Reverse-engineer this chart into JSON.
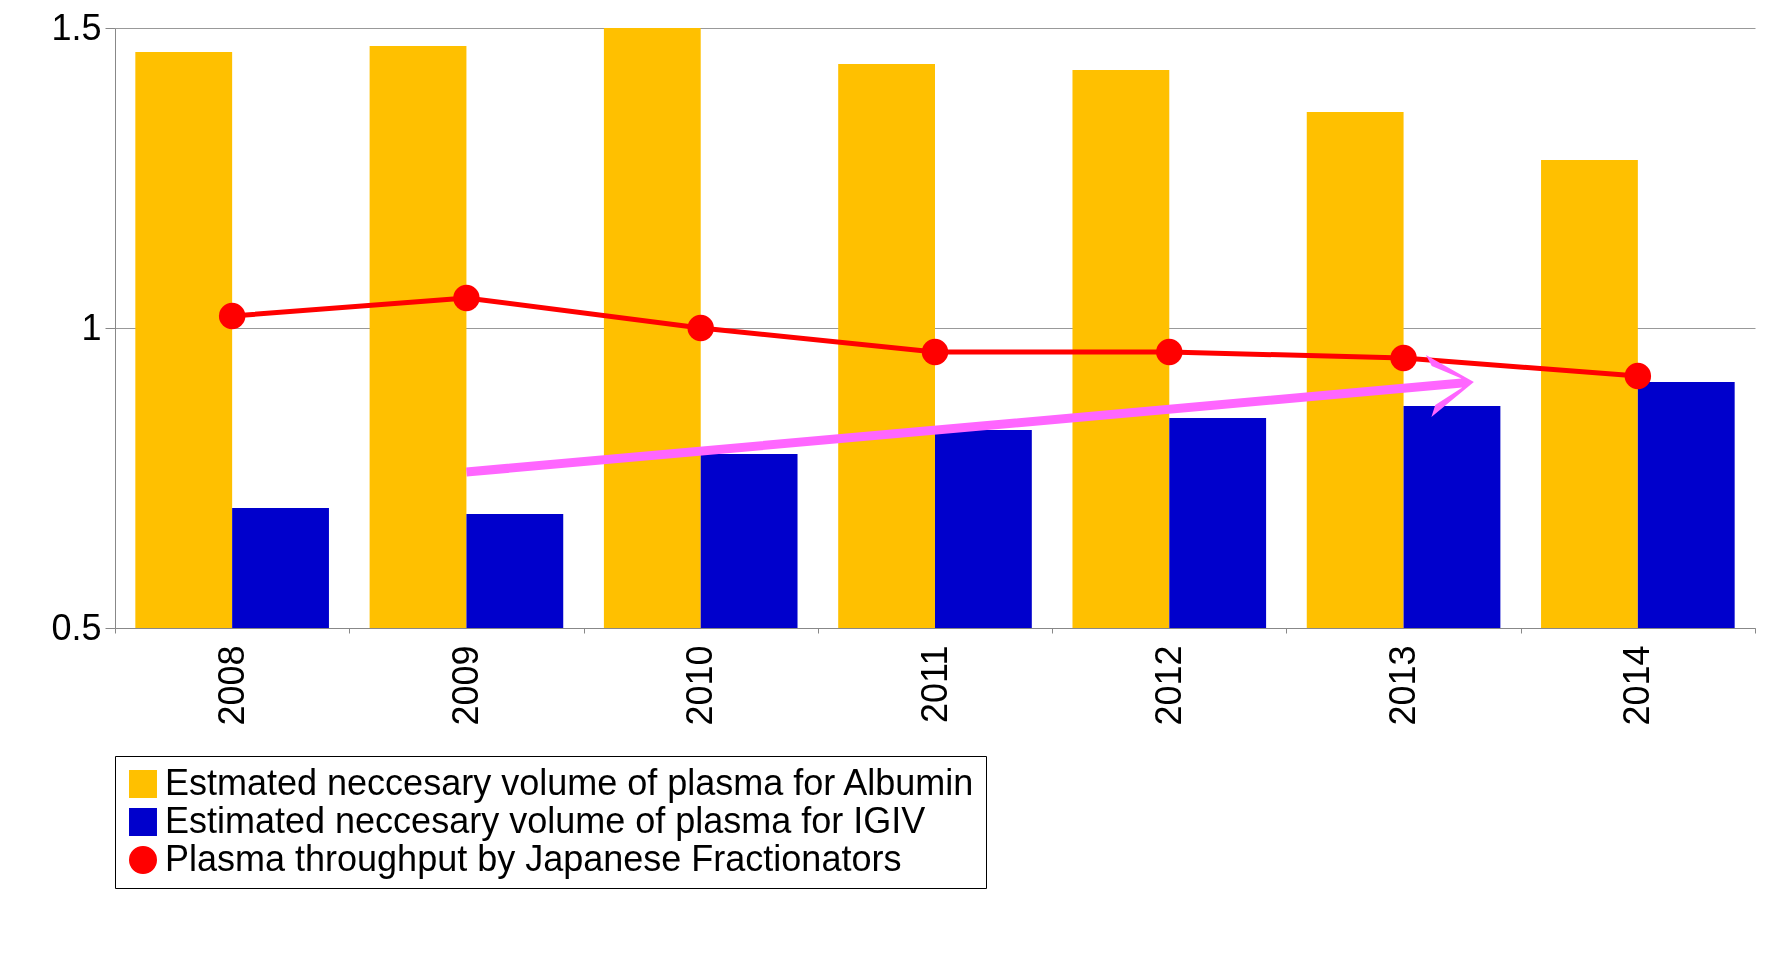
{
  "chart_data": {
    "type": "bar",
    "categories": [
      "2008",
      "2009",
      "2010",
      "2011",
      "2012",
      "2013",
      "2014"
    ],
    "series": [
      {
        "name": "Estmated neccesary volume of plasma for Albumin",
        "color": "#ffc000",
        "values": [
          1.46,
          1.47,
          1.5,
          1.44,
          1.43,
          1.36,
          1.28
        ]
      },
      {
        "name": "Estimated neccesary volume of plasma for IGIV",
        "color": "#0000cc",
        "values": [
          0.7,
          0.69,
          0.79,
          0.83,
          0.85,
          0.87,
          0.91
        ]
      },
      {
        "name": "Plasma throughput by Japanese Fractionators",
        "color": "#ff0000",
        "type": "line",
        "marker": "circle",
        "values": [
          1.02,
          1.05,
          1.0,
          0.96,
          0.96,
          0.95,
          0.92
        ]
      }
    ],
    "ylim": [
      0.5,
      1.5
    ],
    "yticks": [
      0.5,
      1,
      1.5
    ],
    "grid": "y",
    "legend": "bottom"
  }
}
